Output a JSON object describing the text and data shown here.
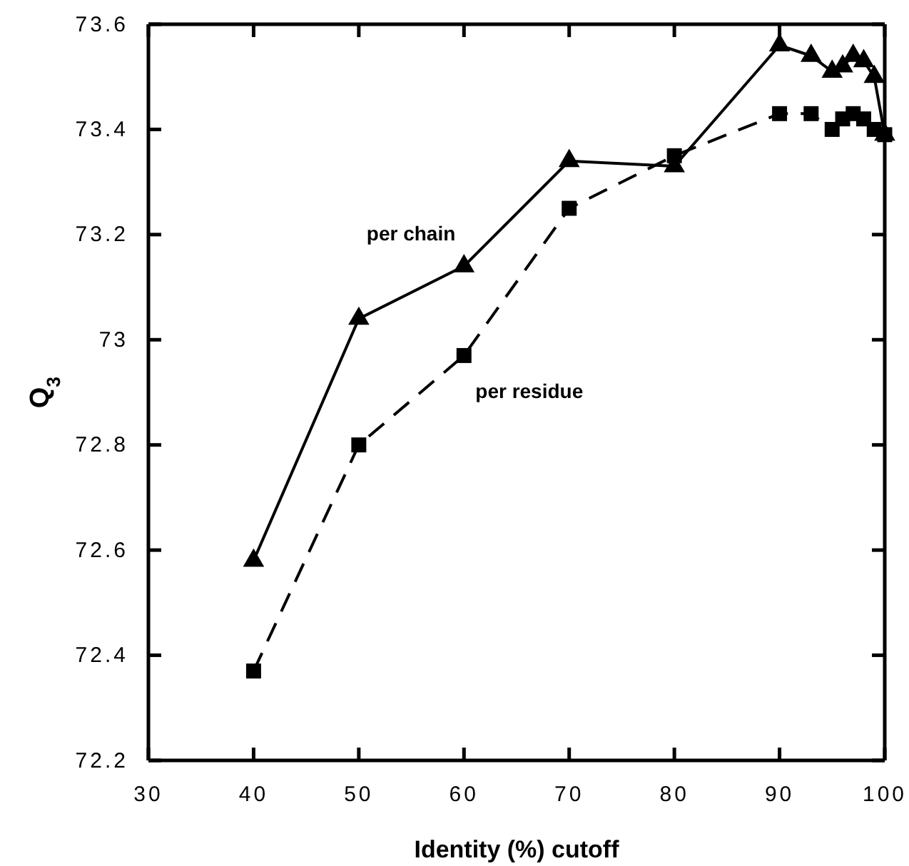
{
  "chart_data": {
    "type": "line",
    "xlabel": "Identity (%) cutoff",
    "ylabel": "Q$_{3}$",
    "xlim": [
      30,
      100
    ],
    "xticks": [
      30,
      40,
      50,
      60,
      70,
      80,
      90,
      100
    ],
    "ylim": [
      72.2,
      73.6
    ],
    "yticks": [
      72.2,
      72.4,
      72.6,
      72.8,
      73,
      73.2,
      73.4,
      73.6
    ],
    "grid": false,
    "series": [
      {
        "name": "per chain",
        "color": "#000000",
        "marker": "triangle",
        "line_style": "solid",
        "x": [
          40,
          50,
          60,
          70,
          80,
          90,
          93,
          95,
          96,
          97,
          98,
          99,
          100
        ],
        "values": [
          72.58,
          73.04,
          73.14,
          73.34,
          73.33,
          73.56,
          73.54,
          73.51,
          73.52,
          73.54,
          73.53,
          73.5,
          73.39
        ]
      },
      {
        "name": "per residue",
        "color": "#000000",
        "marker": "square",
        "line_style": "dashed",
        "x": [
          40,
          50,
          60,
          70,
          80,
          90,
          93,
          95,
          96,
          97,
          98,
          99,
          100
        ],
        "values": [
          72.37,
          72.8,
          72.97,
          73.25,
          73.35,
          73.43,
          73.43,
          73.4,
          73.42,
          73.43,
          73.42,
          73.4,
          73.39
        ]
      }
    ]
  }
}
